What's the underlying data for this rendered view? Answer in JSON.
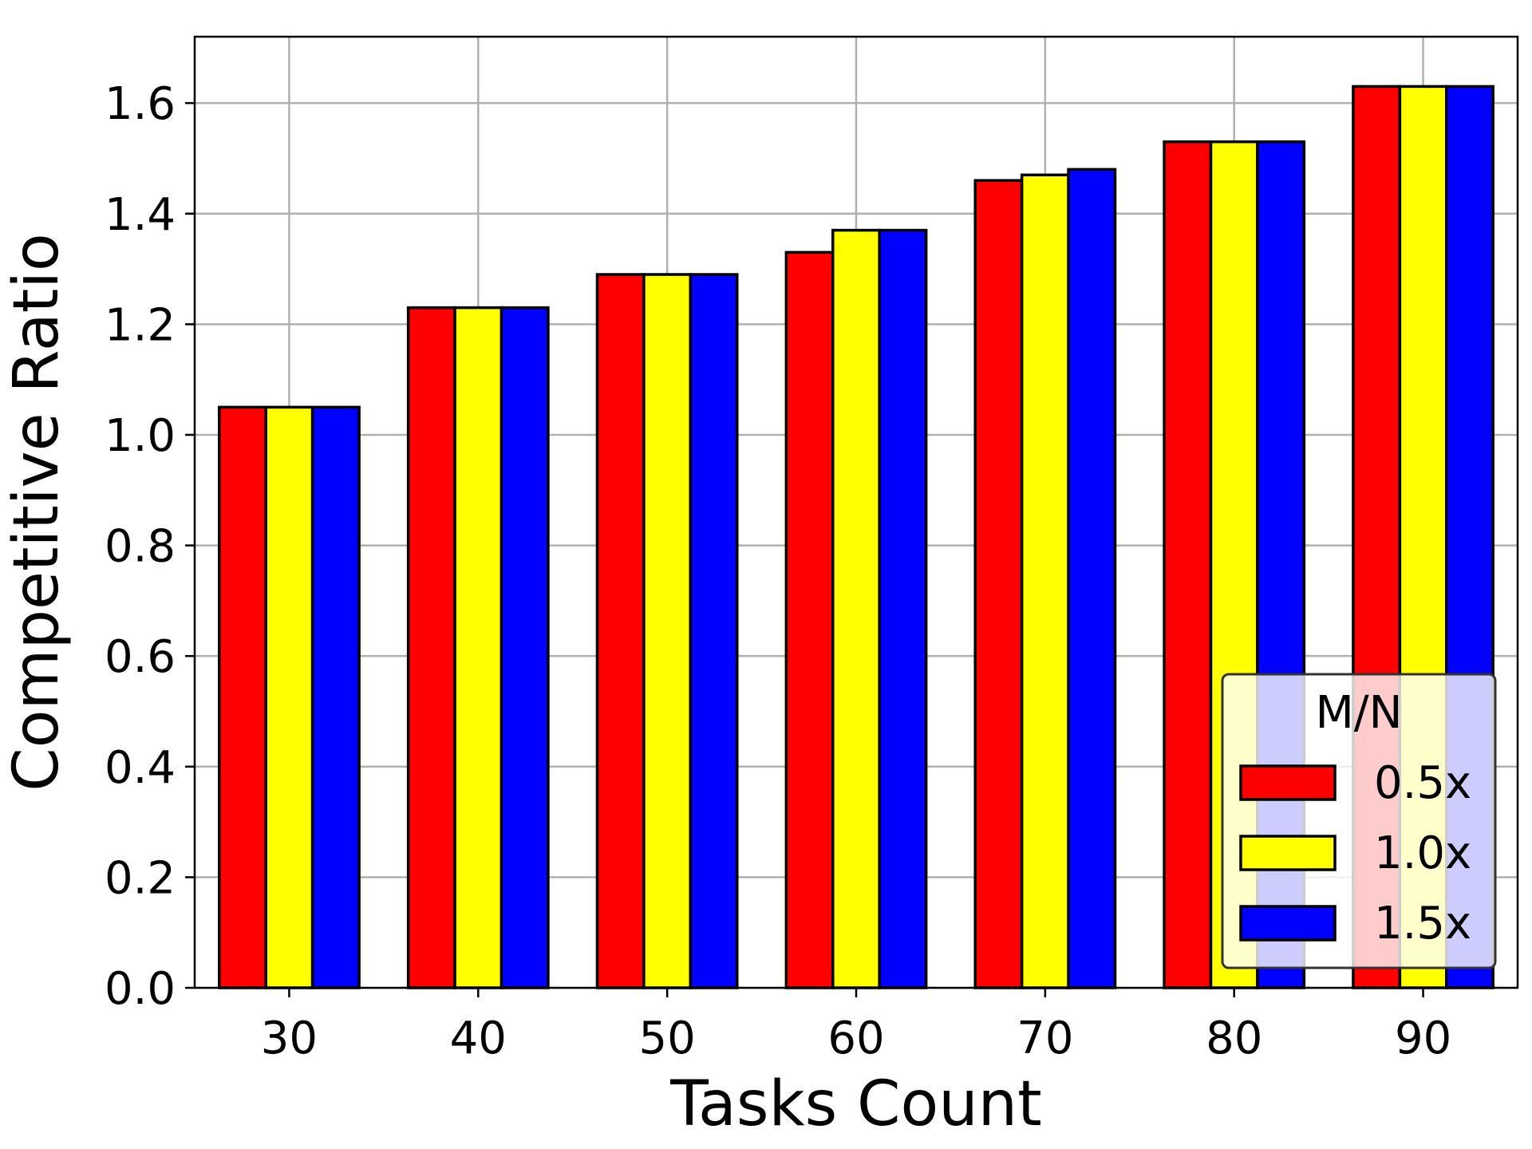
{
  "chart_data": {
    "type": "bar",
    "xlabel": "Tasks Count",
    "ylabel": "Competitive Ratio",
    "categories": [
      "30",
      "40",
      "50",
      "60",
      "70",
      "80",
      "90"
    ],
    "ylim": [
      0.0,
      1.72
    ],
    "yticks": [
      0.0,
      0.2,
      0.4,
      0.6,
      0.8,
      1.0,
      1.2,
      1.4,
      1.6
    ],
    "ytick_labels": [
      "0.0",
      "0.2",
      "0.4",
      "0.6",
      "0.8",
      "1.0",
      "1.2",
      "1.4",
      "1.6"
    ],
    "grid": true,
    "legend": {
      "title": "M/N",
      "location": "lower-right"
    },
    "series": [
      {
        "name": "0.5x",
        "color": "#ff0000",
        "values": [
          1.05,
          1.23,
          1.29,
          1.33,
          1.46,
          1.53,
          1.63
        ]
      },
      {
        "name": "1.0x",
        "color": "#ffff00",
        "values": [
          1.05,
          1.23,
          1.29,
          1.37,
          1.47,
          1.53,
          1.63
        ]
      },
      {
        "name": "1.5x",
        "color": "#0000ff",
        "values": [
          1.05,
          1.23,
          1.29,
          1.37,
          1.48,
          1.53,
          1.63
        ]
      }
    ]
  }
}
